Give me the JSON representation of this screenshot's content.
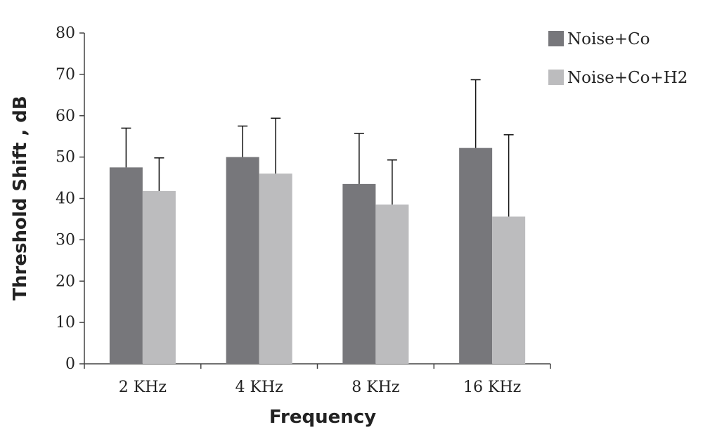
{
  "chart_data": {
    "type": "bar",
    "title": "",
    "xlabel": "Frequency",
    "ylabel": "Threshold Shift , dB",
    "categories": [
      "2 KHz",
      "4 KHz",
      "8 KHz",
      "16  KHz"
    ],
    "ylim": [
      0,
      80
    ],
    "yticks": [
      "0",
      "10",
      "20",
      "30",
      "40",
      "50",
      "60",
      "70",
      "80"
    ],
    "series": [
      {
        "name": "Noise+Co",
        "color": "#77777b",
        "values": [
          47.5,
          50,
          43.5,
          52.2
        ],
        "error_upper": [
          57,
          57.5,
          55.7,
          68.7
        ]
      },
      {
        "name": "Noise+Co+H2",
        "color": "#bcbcbe",
        "values": [
          41.8,
          46,
          38.5,
          35.6
        ],
        "error_upper": [
          49.8,
          59.4,
          49.3,
          55.4
        ]
      }
    ],
    "error_bars": "upper only",
    "grid": false,
    "legend": "top-right"
  }
}
